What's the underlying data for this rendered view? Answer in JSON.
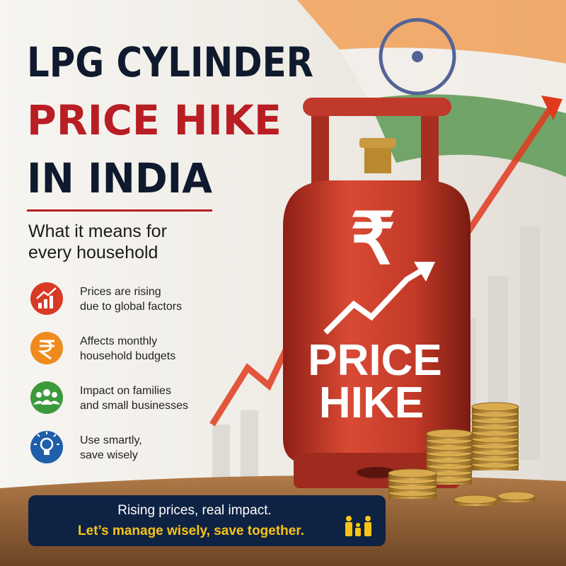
{
  "title": {
    "lines": [
      "LPG CYLINDER",
      "PRICE HIKE",
      "IN INDIA"
    ]
  },
  "subtitle": {
    "lines": [
      "What it means for",
      "every household"
    ]
  },
  "points": [
    {
      "lines": [
        "Prices are rising",
        "due to global factors"
      ]
    },
    {
      "lines": [
        "Affects monthly",
        "household budgets"
      ]
    },
    {
      "lines": [
        "Impact on families",
        "and small businesses"
      ]
    },
    {
      "lines": [
        "Use smartly,",
        "save wisely"
      ]
    }
  ],
  "cylinder": {
    "symbol": "₹",
    "lines": [
      "PRICE",
      "HIKE"
    ]
  },
  "footer": {
    "lines": [
      "Rising prices, real impact.",
      "Let’s manage wisely, save together."
    ]
  }
}
